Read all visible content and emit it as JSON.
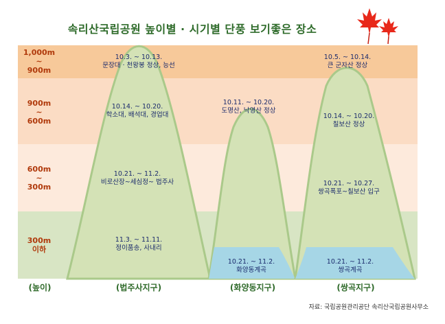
{
  "title": "속리산국립공원 높이별 · 시기별 단풍 보기좋은 장소",
  "bands": [
    {
      "top": "1,000m",
      "mid": "~",
      "bottom": "900m",
      "color": "#f7c99a"
    },
    {
      "top": "900m",
      "mid": "~",
      "bottom": "600m",
      "color": "#fbdcc4"
    },
    {
      "top": "600m",
      "mid": "~",
      "bottom": "300m",
      "color": "#fdeadc"
    },
    {
      "top": "300m",
      "mid": "",
      "bottom": "이하",
      "color": "#d8e5c4"
    }
  ],
  "axis": {
    "height_label": "(높이)",
    "areas": [
      "(법주사지구)",
      "(화양동지구)",
      "(쌍곡지구)"
    ]
  },
  "mountain_color": "#d4e2b6",
  "mountain_edge": "#aac98a",
  "valley_color": "#a6d6e6",
  "spots": {
    "beopjusa": [
      {
        "dates": "10.3. ~ 10.13.",
        "place": "문장대 · 천왕봉 정상, 능선"
      },
      {
        "dates": "10.14. ~ 10.20.",
        "place": "학소대, 배석대, 경업대"
      },
      {
        "dates": "10.21. ~ 11.2.",
        "place": "비로산장~세심정~ 법주사"
      },
      {
        "dates": "11.3. ~ 11.11.",
        "place": "정이품송, 사내리"
      }
    ],
    "hwayang": [
      {
        "dates": "10.11. ~ 10.20.",
        "place": "도명산, 낙영산 정상"
      },
      {
        "dates": "10.21. ~ 11.2.",
        "place": "화양동계곡"
      }
    ],
    "ssanggok": [
      {
        "dates": "10.5. ~ 10.14.",
        "place": "큰 군자산 정상"
      },
      {
        "dates": "10.14. ~ 10.20.",
        "place": "칠보산 정상"
      },
      {
        "dates": "10.21. ~ 10.27.",
        "place": "쌍곡폭포~칠보산 입구"
      },
      {
        "dates": "10.21. ~ 11.2.",
        "place": "쌍곡계곡"
      }
    ]
  },
  "source": "자료: 국립공원관리공단  속리산국립공원사무소"
}
